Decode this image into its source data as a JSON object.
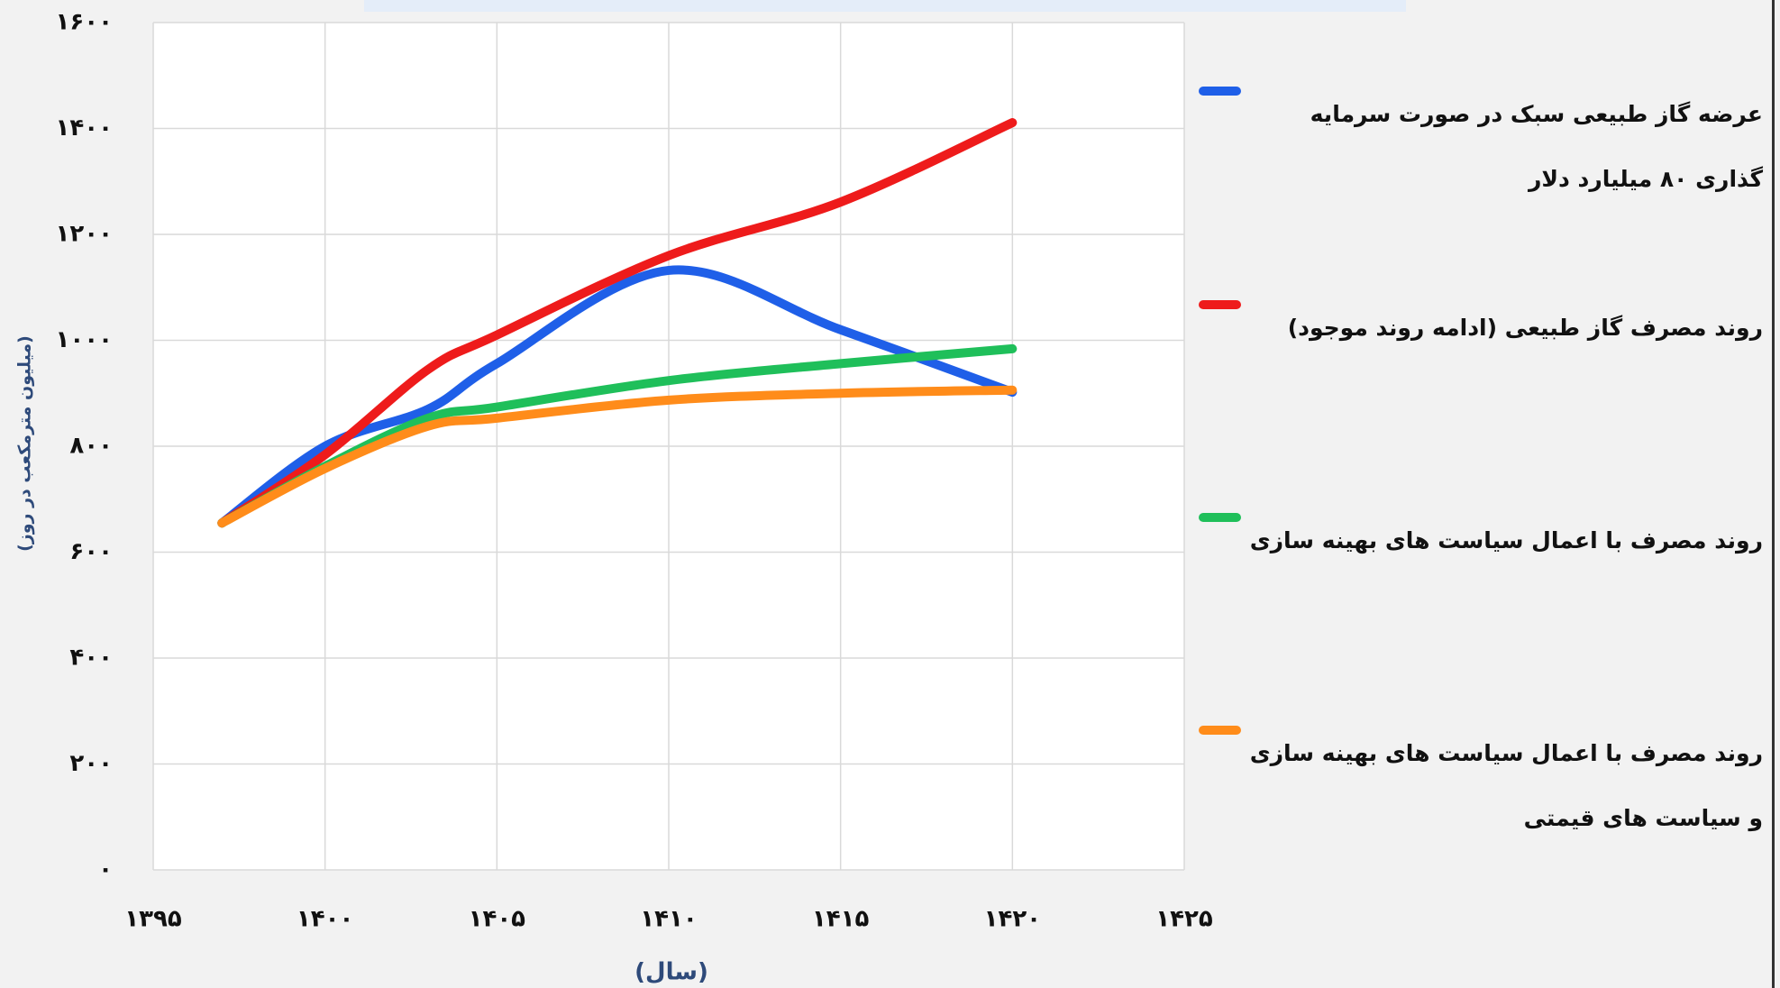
{
  "chart_data": {
    "type": "line",
    "x": [
      1397,
      1400,
      1403,
      1405,
      1410,
      1415,
      1420
    ],
    "series": [
      {
        "name": "عرضه گاز طبیعی سبک در صورت سرمایه گذاری ۸۰ میلیارد دلار",
        "color": "#1f5fe8",
        "values": [
          655,
          800,
          870,
          956,
          1132,
          1020,
          902
        ]
      },
      {
        "name": "روند مصرف گاز طبیعی (ادامه روند موجود)",
        "color": "#ee1b1b",
        "values": [
          655,
          784,
          945,
          1010,
          1160,
          1261,
          1411
        ]
      },
      {
        "name": "روند مصرف با اعمال سیاست های بهینه سازی",
        "color": "#1fbf5a",
        "values": [
          655,
          762,
          853,
          874,
          924,
          956,
          984
        ]
      },
      {
        "name": "روند مصرف با اعمال سیاست های بهینه سازی و سیاست های قیمتی",
        "color": "#ff8c1a",
        "values": [
          655,
          758,
          838,
          853,
          887,
          900,
          906
        ]
      }
    ],
    "xlabel": "(سال)",
    "ylabel": "(میلیون مترمکعب در روز)",
    "xlim": [
      1395,
      1425
    ],
    "ylim": [
      0,
      1600
    ],
    "xticks": [
      {
        "value": 1395,
        "label": "۱۳۹۵"
      },
      {
        "value": 1400,
        "label": "۱۴۰۰"
      },
      {
        "value": 1405,
        "label": "۱۴۰۵"
      },
      {
        "value": 1410,
        "label": "۱۴۱۰"
      },
      {
        "value": 1415,
        "label": "۱۴۱۵"
      },
      {
        "value": 1420,
        "label": "۱۴۲۰"
      },
      {
        "value": 1425,
        "label": "۱۴۲۵"
      }
    ],
    "yticks": [
      {
        "value": 0,
        "label": "۰"
      },
      {
        "value": 200,
        "label": "۲۰۰"
      },
      {
        "value": 400,
        "label": "۴۰۰"
      },
      {
        "value": 600,
        "label": "۶۰۰"
      },
      {
        "value": 800,
        "label": "۸۰۰"
      },
      {
        "value": 1000,
        "label": "۱۰۰۰"
      },
      {
        "value": 1200,
        "label": "۱۲۰۰"
      },
      {
        "value": 1400,
        "label": "۱۴۰۰"
      },
      {
        "value": 1600,
        "label": "۱۶۰۰"
      }
    ],
    "grid": true
  }
}
